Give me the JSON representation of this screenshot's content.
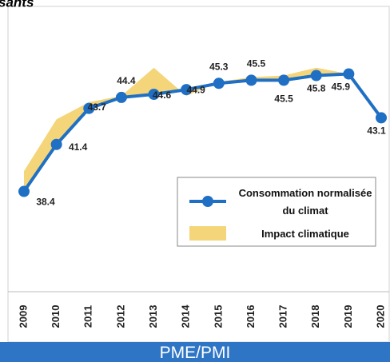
{
  "chart_data": {
    "type": "line",
    "title": "sants",
    "footer": "PME/PMI",
    "categories": [
      "2009",
      "2010",
      "2011",
      "2012",
      "2013",
      "2014",
      "2015",
      "2016",
      "2017",
      "2018",
      "2019",
      "2020"
    ],
    "series": [
      {
        "name": "Consommation normalisée du climat",
        "color": "#1f6fc4",
        "values": [
          38.4,
          41.4,
          43.7,
          44.4,
          44.6,
          44.9,
          45.3,
          45.5,
          45.5,
          45.8,
          45.9,
          43.1
        ]
      },
      {
        "name": "Impact climatique",
        "color": "#f5d57a",
        "values": [
          39.7,
          43.0,
          44.1,
          44.5,
          46.3,
          44.5,
          45.4,
          45.7,
          45.8,
          46.3,
          45.9,
          43.1
        ]
      }
    ],
    "ylim": [
      32,
      49.6
    ]
  }
}
